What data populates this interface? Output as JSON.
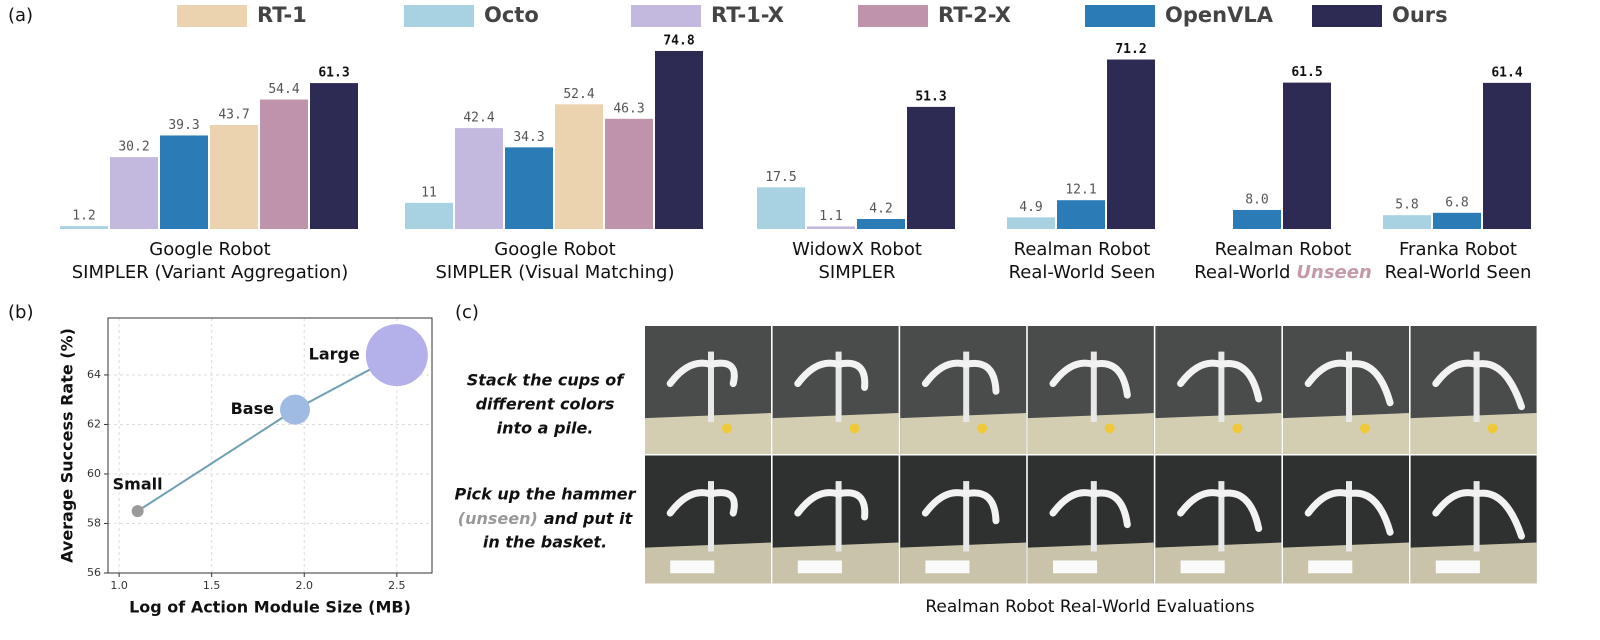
{
  "panel_labels": [
    "(a)",
    "(b)",
    "(c)"
  ],
  "chart_data": [
    {
      "type": "bar",
      "series": [
        {
          "name": "RT-1",
          "color": "#ecd3b0"
        },
        {
          "name": "Octo",
          "color": "#a8d2e2"
        },
        {
          "name": "RT-1-X",
          "color": "#c3b9df"
        },
        {
          "name": "RT-2-X",
          "color": "#bf94aa"
        },
        {
          "name": "OpenVLA",
          "color": "#2b7bb7"
        },
        {
          "name": "Ours",
          "color": "#2d2a53"
        }
      ],
      "groups": [
        {
          "title": [
            "Google Robot",
            "SIMPLER (Variant Aggregation)"
          ],
          "bars": [
            {
              "name": "Octo",
              "value": 1.2
            },
            {
              "name": "RT-1-X",
              "value": 30.2
            },
            {
              "name": "OpenVLA",
              "value": 39.3
            },
            {
              "name": "RT-1",
              "value": 43.7
            },
            {
              "name": "RT-2-X",
              "value": 54.4
            },
            {
              "name": "Ours",
              "value": 61.3
            }
          ]
        },
        {
          "title": [
            "Google Robot",
            "SIMPLER (Visual Matching)"
          ],
          "bars": [
            {
              "name": "Octo",
              "value": 11
            },
            {
              "name": "RT-1-X",
              "value": 42.4
            },
            {
              "name": "OpenVLA",
              "value": 34.3
            },
            {
              "name": "RT-1",
              "value": 52.4
            },
            {
              "name": "RT-2-X",
              "value": 46.3
            },
            {
              "name": "Ours",
              "value": 74.8
            }
          ]
        },
        {
          "title": [
            "WidowX Robot",
            "SIMPLER"
          ],
          "bars": [
            {
              "name": "Octo",
              "value": 17.5
            },
            {
              "name": "RT-1-X",
              "value": 1.1
            },
            {
              "name": "OpenVLA",
              "value": 4.2
            },
            {
              "name": "Ours",
              "value": 51.3
            }
          ]
        },
        {
          "title": [
            "Realman Robot",
            "Real-World Seen"
          ],
          "bars": [
            {
              "name": "Octo",
              "value": 4.9
            },
            {
              "name": "OpenVLA",
              "value": 12.1
            },
            {
              "name": "Ours",
              "value": 71.2
            }
          ]
        },
        {
          "title": [
            "Realman Robot",
            "Real-World"
          ],
          "emphasis": "Unseen",
          "bars": [
            {
              "name": "OpenVLA",
              "value": 8,
              "value_label": "8.0"
            },
            {
              "name": "Ours",
              "value": 61.5
            }
          ]
        },
        {
          "title": [
            "Franka Robot",
            "Real-World Seen"
          ],
          "bars": [
            {
              "name": "Octo",
              "value": 5.8
            },
            {
              "name": "OpenVLA",
              "value": 6.8
            },
            {
              "name": "Ours",
              "value": 61.4
            }
          ]
        }
      ]
    },
    {
      "type": "scatter",
      "xlabel": "Log of Action Module Size (MB)",
      "ylabel": "Average Success Rate (%)",
      "xlim": [
        0.94,
        2.69
      ],
      "ylim": [
        56,
        66.3
      ],
      "xticks": [
        {
          "value": 1,
          "label": "1.0"
        },
        1.5,
        {
          "value": 2,
          "label": "2.0"
        },
        2.5
      ],
      "yticks": [
        56,
        58,
        60,
        62,
        64
      ],
      "grid": true,
      "line_color": "#6f9fb2",
      "labels": [
        "Small",
        "Base",
        "Large"
      ],
      "x": [
        1.1,
        1.95,
        2.5
      ],
      "values": [
        58.5,
        62.6,
        64.8
      ],
      "sizes": [
        36,
        225,
        961
      ],
      "colors": [
        "#9a9a9a",
        "#9fbbe3",
        "#b4b1ea"
      ]
    }
  ],
  "panel_c": {
    "rows": [
      {
        "lines": [
          "Stack the cups of",
          "different colors",
          "into a pile."
        ]
      },
      {
        "lines": [
          "Pick up the hammer",
          "and put it",
          "in the basket."
        ],
        "emphasis": "(unseen)"
      }
    ],
    "caption": "Realman Robot Real-World Evaluations"
  }
}
